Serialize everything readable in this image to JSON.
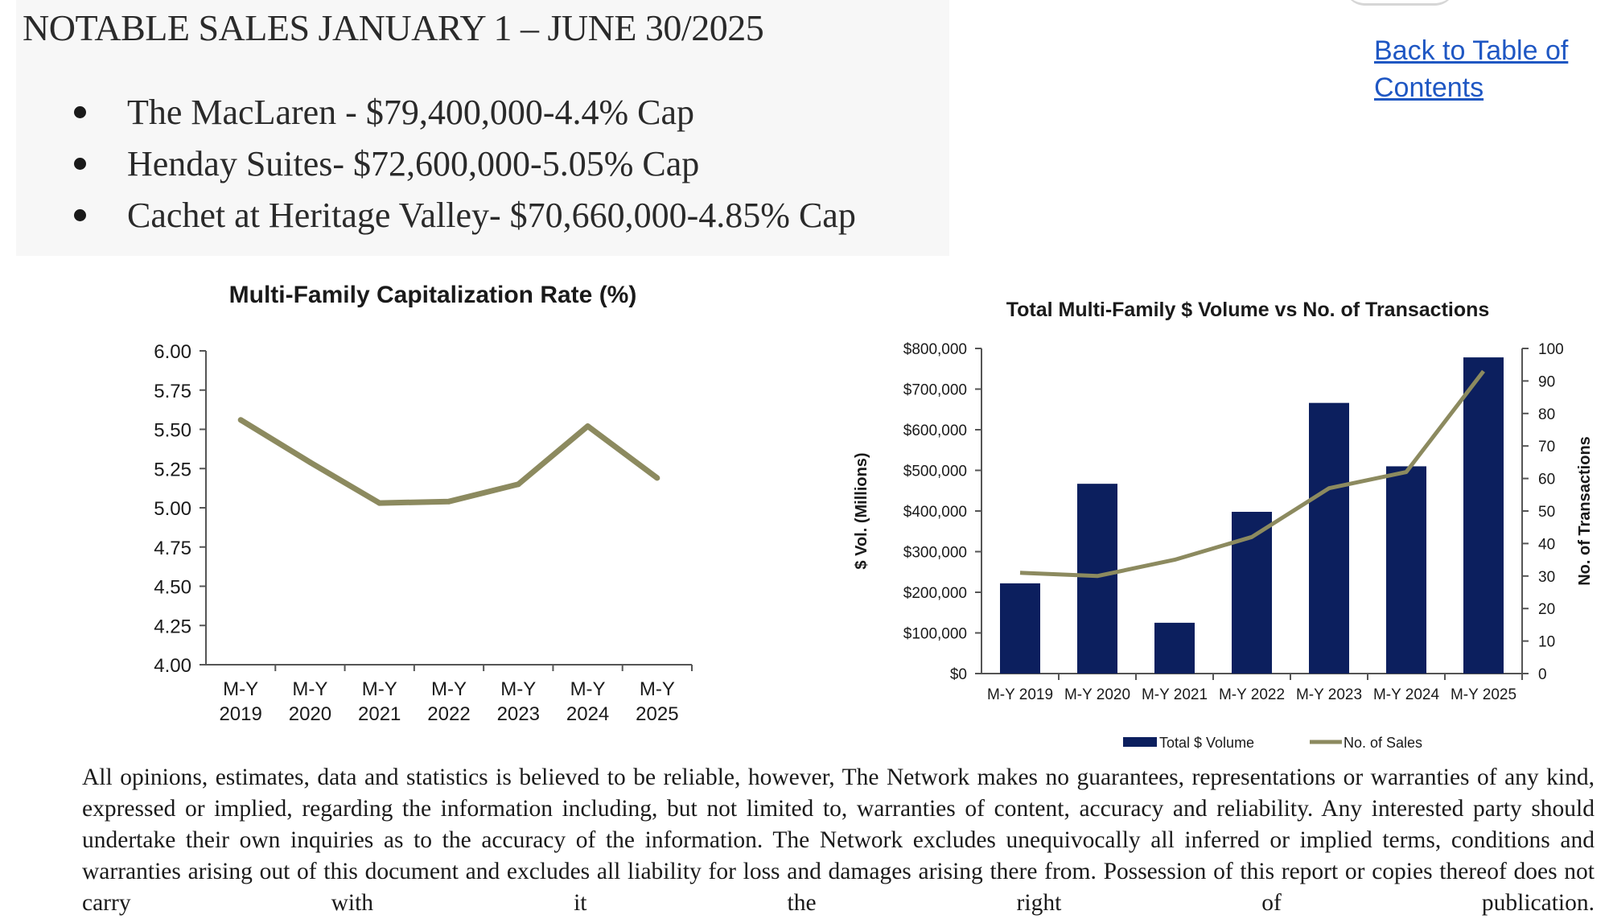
{
  "header": {
    "title": "NOTABLE SALES JANUARY 1 – JUNE 30/2025",
    "back_link": "Back to Table of Contents"
  },
  "sales": [
    "The MacLaren - $79,400,000-4.4% Cap",
    "Henday Suites- $72,600,000-5.05% Cap",
    "Cachet at Heritage Valley- $70,660,000-4.85% Cap"
  ],
  "colors": {
    "line": "#8c8a5f",
    "bar": "#0c1f5e",
    "link": "#1f57c3"
  },
  "chart_data": [
    {
      "type": "line",
      "title": "Multi-Family Capitalization Rate (%)",
      "categories": [
        [
          "M-Y",
          "2019"
        ],
        [
          "M-Y",
          "2020"
        ],
        [
          "M-Y",
          "2021"
        ],
        [
          "M-Y",
          "2022"
        ],
        [
          "M-Y",
          "2023"
        ],
        [
          "M-Y",
          "2024"
        ],
        [
          "M-Y",
          "2025"
        ]
      ],
      "series": [
        {
          "values": [
            5.56,
            5.29,
            5.03,
            5.04,
            5.15,
            5.52,
            5.19
          ]
        }
      ],
      "ylim": [
        4.0,
        6.0
      ],
      "yticks": [
        "6.00",
        "5.75",
        "5.50",
        "5.25",
        "5.00",
        "4.75",
        "4.50",
        "4.25",
        "4.00"
      ],
      "grid": false
    },
    {
      "type": "bar",
      "title": "Total Multi-Family $ Volume vs No. of Transactions",
      "categories": [
        "M-Y 2019",
        "M-Y 2020",
        "M-Y 2021",
        "M-Y 2022",
        "M-Y 2023",
        "M-Y 2024",
        "M-Y 2025"
      ],
      "ylabel_left": "$ Vol. (Millions)",
      "ylabel_right": "No. of Transactions",
      "ylim_left": [
        0,
        800000
      ],
      "ylim_right": [
        0,
        100
      ],
      "yticks_left": [
        "$800,000",
        "$700,000",
        "$600,000",
        "$500,000",
        "$400,000",
        "$300,000",
        "$200,000",
        "$100,000",
        "$0"
      ],
      "yticks_right": [
        "100",
        "90",
        "80",
        "70",
        "60",
        "50",
        "40",
        "30",
        "20",
        "10",
        "0"
      ],
      "series": [
        {
          "name": "Total $ Volume",
          "type": "bar",
          "axis": "left",
          "values": [
            222000,
            467000,
            125000,
            398000,
            666000,
            510000,
            778000
          ]
        },
        {
          "name": "No. of Sales",
          "type": "line",
          "axis": "right",
          "values": [
            31,
            30,
            35,
            42,
            57,
            62,
            93
          ]
        }
      ],
      "legend": "bottom",
      "grid": false
    }
  ],
  "disclaimer": "All opinions, estimates, data and statistics is believed to be reliable, however, The Network makes no guarantees, representations or warranties of any kind, expressed or implied, regarding the information including, but not limited to, warranties of content, accuracy and reliability. Any interested party should undertake their own inquiries as to the accuracy of the information. The Network excludes unequivocally all inferred or implied terms, conditions and warranties arising out of this document and excludes all liability for loss and damages arising there from.  Possession of this report or copies thereof does not carry with it the right of publication."
}
